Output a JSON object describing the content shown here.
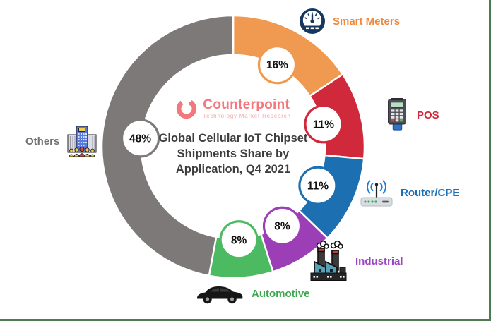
{
  "chart_data": {
    "type": "pie",
    "donut": true,
    "direction": "clockwise",
    "start_angle_deg": 0,
    "legend_position": "around",
    "title_lines": [
      "Global Cellular IoT Chipset",
      "Shipments Share by",
      "Application, Q4 2021"
    ],
    "segments": [
      {
        "label": "Smart Meters",
        "value": 16,
        "pct_label": "16%",
        "color": "#EF9A50",
        "text_color": "#F0883B",
        "icon": "gauge-icon"
      },
      {
        "label": "POS",
        "value": 11,
        "pct_label": "11%",
        "color": "#D0293B",
        "text_color": "#D0293B",
        "icon": "pos-terminal-icon"
      },
      {
        "label": "Router/CPE",
        "value": 11,
        "pct_label": "11%",
        "color": "#1C6FB0",
        "text_color": "#1B6FB5",
        "icon": "router-icon"
      },
      {
        "label": "Industrial",
        "value": 8,
        "pct_label": "8%",
        "color": "#9C3FB6",
        "text_color": "#9C44C4",
        "icon": "factory-icon"
      },
      {
        "label": "Automotive",
        "value": 8,
        "pct_label": "8%",
        "color": "#4CBA60",
        "text_color": "#3DA84F",
        "icon": "car-icon"
      },
      {
        "label": "Others",
        "value": 48,
        "pct_label": "48%",
        "color": "#7D7979",
        "text_color": "#767171",
        "icon": "building-people-icon"
      }
    ]
  },
  "branding": {
    "logo_text": "Counterpoint",
    "logo_subtext": "Technology Market Research",
    "logo_color": "#F2787D"
  },
  "page": {
    "border_color": "#4E7A52",
    "background": "#FFFFFF"
  }
}
